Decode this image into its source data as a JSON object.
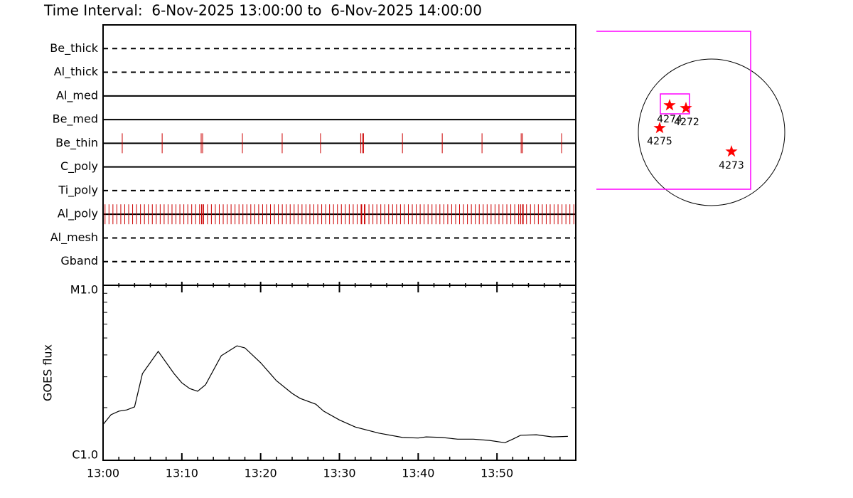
{
  "title": "Time Interval:  6-Nov-2025 13:00:00 to  6-Nov-2025 14:00:00",
  "chart_data": [
    {
      "type": "timeline",
      "xlim": [
        "13:00",
        "14:00"
      ],
      "event_color": "#cc0000",
      "rows": [
        {
          "name": "Be_thick",
          "linestyle": "dashed",
          "events": []
        },
        {
          "name": "Al_thick",
          "linestyle": "dashed",
          "events": []
        },
        {
          "name": "Al_med",
          "linestyle": "solid",
          "events": []
        },
        {
          "name": "Be_med",
          "linestyle": "solid",
          "events": []
        },
        {
          "name": "Be_thin",
          "linestyle": "solid",
          "events": [
            "13:02:26",
            "13:07:30",
            "13:12:27",
            "13:12:38",
            "13:17:41",
            "13:22:44",
            "13:27:36",
            "13:32:42",
            "13:32:53",
            "13:33:04",
            "13:38:00",
            "13:43:03",
            "13:48:06",
            "13:53:04",
            "13:53:15",
            "13:58:12"
          ]
        },
        {
          "name": "C_poly",
          "linestyle": "solid",
          "events": []
        },
        {
          "name": "Ti_poly",
          "linestyle": "dashed",
          "events": []
        },
        {
          "name": "Al_poly",
          "linestyle": "solid",
          "events": [
            "13:00:15",
            "13:00:45",
            "13:01:15",
            "13:01:45",
            "13:02:15",
            "13:02:45",
            "13:03:15",
            "13:03:45",
            "13:04:15",
            "13:04:45",
            "13:05:15",
            "13:05:45",
            "13:06:15",
            "13:06:45",
            "13:07:15",
            "13:07:45",
            "13:08:15",
            "13:08:45",
            "13:09:15",
            "13:09:45",
            "13:10:15",
            "13:10:45",
            "13:11:15",
            "13:11:45",
            "13:12:15",
            "13:12:30",
            "13:12:40",
            "13:12:45",
            "13:13:15",
            "13:13:45",
            "13:14:15",
            "13:14:45",
            "13:15:15",
            "13:15:45",
            "13:16:15",
            "13:16:45",
            "13:17:15",
            "13:17:45",
            "13:18:15",
            "13:18:45",
            "13:19:15",
            "13:19:45",
            "13:20:15",
            "13:20:45",
            "13:21:15",
            "13:21:45",
            "13:22:15",
            "13:22:45",
            "13:23:15",
            "13:23:45",
            "13:24:15",
            "13:24:45",
            "13:25:15",
            "13:25:45",
            "13:26:15",
            "13:26:45",
            "13:27:15",
            "13:27:45",
            "13:28:15",
            "13:28:45",
            "13:29:15",
            "13:29:45",
            "13:30:15",
            "13:30:45",
            "13:31:15",
            "13:31:45",
            "13:32:15",
            "13:32:45",
            "13:32:50",
            "13:33:10",
            "13:33:15",
            "13:33:45",
            "13:34:15",
            "13:34:45",
            "13:35:15",
            "13:35:45",
            "13:36:15",
            "13:36:45",
            "13:37:15",
            "13:37:45",
            "13:38:15",
            "13:38:45",
            "13:39:15",
            "13:39:45",
            "13:40:15",
            "13:40:45",
            "13:41:15",
            "13:41:45",
            "13:42:15",
            "13:42:45",
            "13:43:15",
            "13:43:45",
            "13:44:15",
            "13:44:45",
            "13:45:15",
            "13:45:45",
            "13:46:15",
            "13:46:45",
            "13:47:15",
            "13:47:45",
            "13:48:15",
            "13:48:45",
            "13:49:15",
            "13:49:45",
            "13:50:15",
            "13:50:45",
            "13:51:15",
            "13:51:45",
            "13:52:15",
            "13:52:45",
            "13:53:00",
            "13:53:15",
            "13:53:20",
            "13:53:45",
            "13:54:15",
            "13:54:45",
            "13:55:15",
            "13:55:45",
            "13:56:15",
            "13:56:45",
            "13:57:15",
            "13:57:45",
            "13:58:15",
            "13:58:45",
            "13:59:15",
            "13:59:45"
          ]
        },
        {
          "name": "Al_mesh",
          "linestyle": "dashed",
          "events": []
        },
        {
          "name": "Gband",
          "linestyle": "dashed",
          "events": []
        }
      ]
    },
    {
      "type": "line",
      "ylabel": "GOES flux",
      "log_y": true,
      "color": "#000000",
      "xlim": [
        "13:00",
        "14:00"
      ],
      "xticks": [
        "13:00",
        "13:10",
        "13:20",
        "13:30",
        "13:40",
        "13:50"
      ],
      "ylim": [
        1e-06,
        1e-05
      ],
      "yticks": [
        {
          "value": 1e-05,
          "label": "M1.0"
        },
        {
          "value": 1e-06,
          "label": "C1.0"
        }
      ],
      "x": [
        "13:00",
        "13:01",
        "13:02",
        "13:03",
        "13:04",
        "13:05",
        "13:07",
        "13:09",
        "13:10",
        "13:11",
        "13:12",
        "13:13",
        "13:15",
        "13:17",
        "13:18",
        "13:20",
        "13:22",
        "13:24",
        "13:25",
        "13:27",
        "13:28",
        "13:30",
        "13:32",
        "13:35",
        "13:38",
        "13:40",
        "13:41",
        "13:43",
        "13:45",
        "13:47",
        "13:49",
        "13:51",
        "13:52",
        "13:53",
        "13:55",
        "13:57",
        "13:59"
      ],
      "values": [
        1.6e-06,
        1.82e-06,
        1.91e-06,
        1.94e-06,
        2.02e-06,
        3.13e-06,
        4.19e-06,
        3.13e-06,
        2.77e-06,
        2.57e-06,
        2.48e-06,
        2.7e-06,
        3.96e-06,
        4.51e-06,
        4.39e-06,
        3.61e-06,
        2.85e-06,
        2.41e-06,
        2.26e-06,
        2.09e-06,
        1.91e-06,
        1.7e-06,
        1.55e-06,
        1.43e-06,
        1.35e-06,
        1.34e-06,
        1.36e-06,
        1.35e-06,
        1.32e-06,
        1.32e-06,
        1.3e-06,
        1.26e-06,
        1.32e-06,
        1.39e-06,
        1.4e-06,
        1.36e-06,
        1.37e-06
      ]
    }
  ],
  "map": {
    "active_regions": [
      "4274",
      "4272",
      "4275",
      "4273"
    ]
  }
}
